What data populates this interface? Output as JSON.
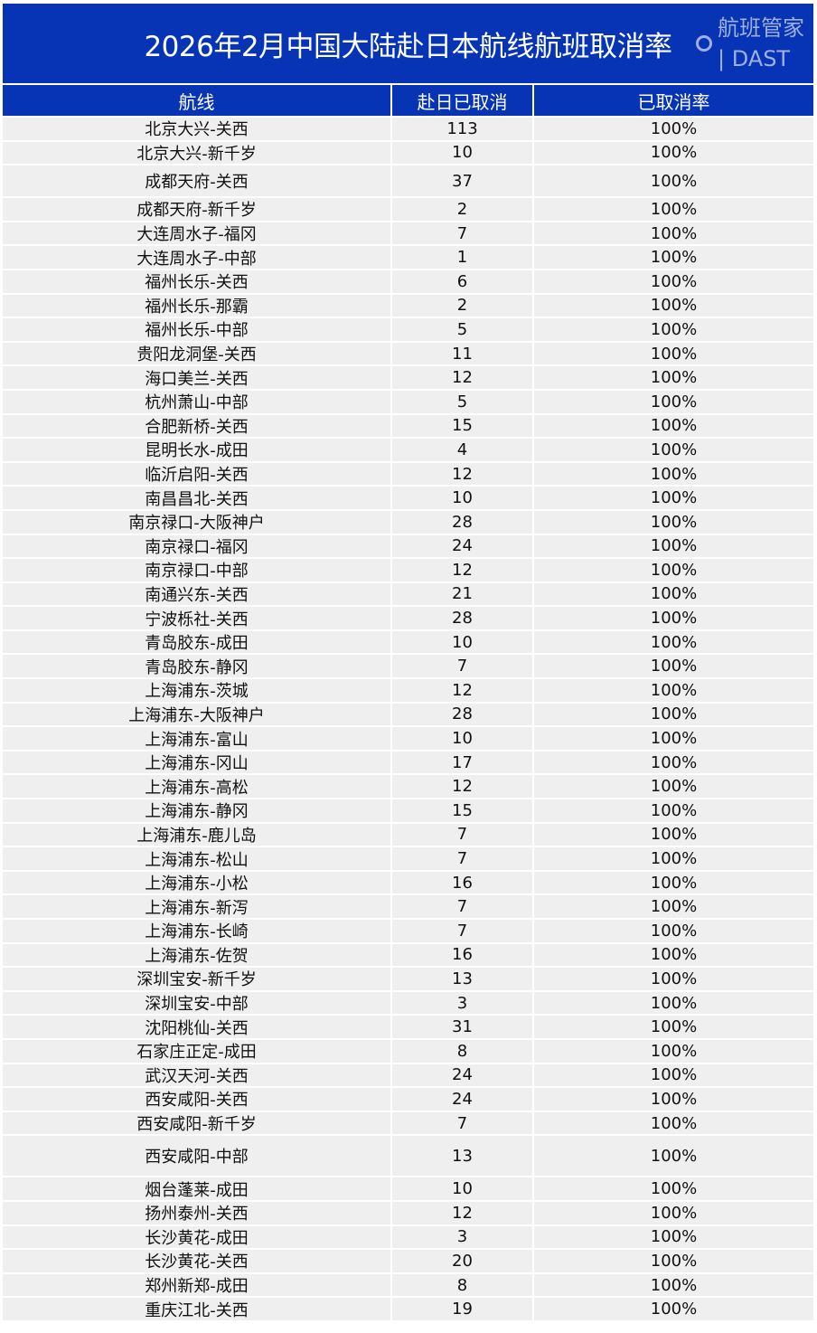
{
  "title": "2026年2月中国大陆赴日本航线航班取消率",
  "columns": [
    "航线",
    "赴日已取消",
    "已取消率"
  ],
  "rows": [
    [
      "北京大兴-关西",
      "113",
      "100%"
    ],
    [
      "北京大兴-新千岁",
      "10",
      "100%"
    ],
    [
      "成都天府-关西",
      "37",
      "100%"
    ],
    [
      "成都天府-新千岁",
      "2",
      "100%"
    ],
    [
      "大连周水子-福冈",
      "7",
      "100%"
    ],
    [
      "大连周水子-中部",
      "1",
      "100%"
    ],
    [
      "福州长乐-关西",
      "6",
      "100%"
    ],
    [
      "福州长乐-那霸",
      "2",
      "100%"
    ],
    [
      "福州长乐-中部",
      "5",
      "100%"
    ],
    [
      "贵阳龙洞堡-关西",
      "11",
      "100%"
    ],
    [
      "海口美兰-关西",
      "12",
      "100%"
    ],
    [
      "杭州萧山-中部",
      "5",
      "100%"
    ],
    [
      "合肥新桥-关西",
      "15",
      "100%"
    ],
    [
      "昆明长水-成田",
      "4",
      "100%"
    ],
    [
      "临沂启阳-关西",
      "12",
      "100%"
    ],
    [
      "南昌昌北-关西",
      "10",
      "100%"
    ],
    [
      "南京禄口-大阪神户",
      "28",
      "100%"
    ],
    [
      "南京禄口-福冈",
      "24",
      "100%"
    ],
    [
      "南京禄口-中部",
      "12",
      "100%"
    ],
    [
      "南通兴东-关西",
      "21",
      "100%"
    ],
    [
      "宁波栎社-关西",
      "28",
      "100%"
    ],
    [
      "青岛胶东-成田",
      "10",
      "100%"
    ],
    [
      "青岛胶东-静冈",
      "7",
      "100%"
    ],
    [
      "上海浦东-茨城",
      "12",
      "100%"
    ],
    [
      "上海浦东-大阪神户",
      "28",
      "100%"
    ],
    [
      "上海浦东-富山",
      "10",
      "100%"
    ],
    [
      "上海浦东-冈山",
      "17",
      "100%"
    ],
    [
      "上海浦东-高松",
      "12",
      "100%"
    ],
    [
      "上海浦东-静冈",
      "15",
      "100%"
    ],
    [
      "上海浦东-鹿儿岛",
      "7",
      "100%"
    ],
    [
      "上海浦东-松山",
      "7",
      "100%"
    ],
    [
      "上海浦东-小松",
      "16",
      "100%"
    ],
    [
      "上海浦东-新泻",
      "7",
      "100%"
    ],
    [
      "上海浦东-长崎",
      "7",
      "100%"
    ],
    [
      "上海浦东-佐贺",
      "16",
      "100%"
    ],
    [
      "深圳宝安-新千岁",
      "13",
      "100%"
    ],
    [
      "深圳宝安-中部",
      "3",
      "100%"
    ],
    [
      "沈阳桃仙-关西",
      "31",
      "100%"
    ],
    [
      "石家庄正定-成田",
      "8",
      "100%"
    ],
    [
      "武汉天河-关西",
      "24",
      "100%"
    ],
    [
      "西安咸阳-关西",
      "24",
      "100%"
    ],
    [
      "西安咸阳-新千岁",
      "7",
      "100%"
    ],
    [
      "西安咸阳-中部",
      "13",
      "100%"
    ],
    [
      "烟台蓬莱-成田",
      "10",
      "100%"
    ],
    [
      "扬州泰州-关西",
      "12",
      "100%"
    ],
    [
      "长沙黄花-成田",
      "3",
      "100%"
    ],
    [
      "长沙黄花-关西",
      "20",
      "100%"
    ],
    [
      "郑州新郑-成田",
      "8",
      "100%"
    ],
    [
      "重庆江北-关西",
      "19",
      "100%"
    ]
  ],
  "watermark": "航班管家 | DAST",
  "colors": {
    "header_bg": "#0634b4",
    "row_bg": "#efefef"
  }
}
